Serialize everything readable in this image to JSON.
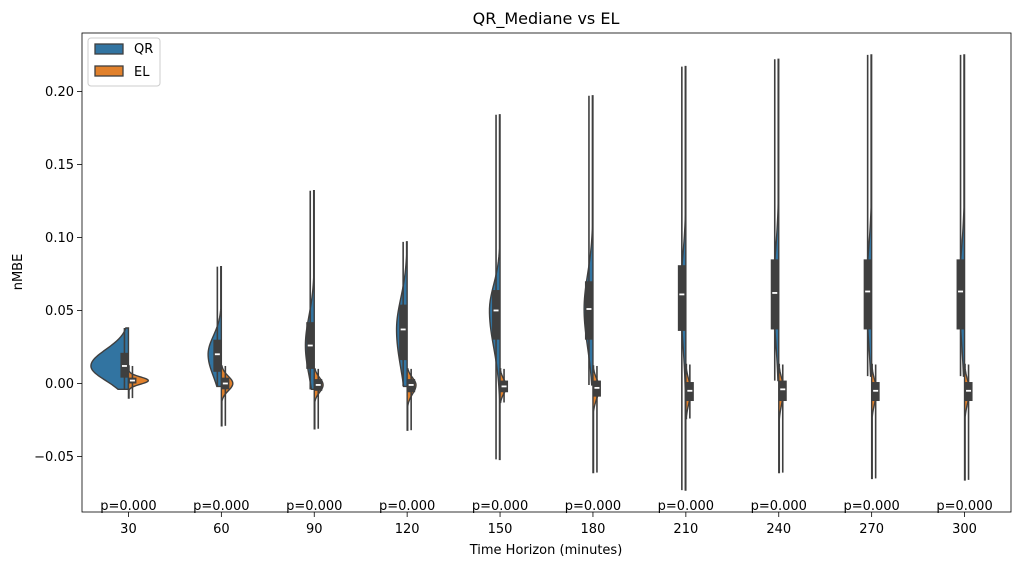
{
  "chart_data": {
    "type": "violin",
    "title": "QR_Mediane vs EL",
    "xlabel": "Time Horizon (minutes)",
    "ylabel": "nMBE",
    "categories": [
      "30",
      "60",
      "90",
      "120",
      "150",
      "180",
      "210",
      "240",
      "270",
      "300"
    ],
    "yticks": [
      -0.05,
      0.0,
      0.05,
      0.1,
      0.15,
      0.2
    ],
    "ytick_labels": [
      "−0.05",
      "0.00",
      "0.05",
      "0.10",
      "0.15",
      "0.20"
    ],
    "ylim": [
      -0.088,
      0.24
    ],
    "legend": {
      "position": "top-left",
      "entries": [
        "QR",
        "EL"
      ]
    },
    "colors": {
      "QR": "#3274a1",
      "EL": "#e1812c",
      "outline": "#3f3f3f",
      "box": "#3f3f3f",
      "median": "#ffffff"
    },
    "p_values": [
      "p=0.000",
      "p=0.000",
      "p=0.000",
      "p=0.000",
      "p=0.000",
      "p=0.000",
      "p=0.000",
      "p=0.000",
      "p=0.000",
      "p=0.000"
    ],
    "series": [
      {
        "name": "QR",
        "side": "left",
        "stats": [
          {
            "min": -0.004,
            "q1": 0.004,
            "median": 0.012,
            "q3": 0.021,
            "max": 0.038,
            "density_width": 0.85
          },
          {
            "min": -0.002,
            "q1": 0.008,
            "median": 0.02,
            "q3": 0.03,
            "max": 0.08,
            "density_width": 0.3
          },
          {
            "min": -0.004,
            "q1": 0.01,
            "median": 0.026,
            "q3": 0.042,
            "max": 0.132,
            "density_width": 0.2
          },
          {
            "min": -0.002,
            "q1": 0.016,
            "median": 0.037,
            "q3": 0.054,
            "max": 0.097,
            "density_width": 0.24
          },
          {
            "min": -0.052,
            "q1": 0.03,
            "median": 0.05,
            "q3": 0.064,
            "max": 0.184,
            "density_width": 0.24
          },
          {
            "min": -0.001,
            "q1": 0.03,
            "median": 0.051,
            "q3": 0.07,
            "max": 0.197,
            "density_width": 0.2
          },
          {
            "min": -0.073,
            "q1": 0.036,
            "median": 0.061,
            "q3": 0.081,
            "max": 0.217,
            "density_width": 0.12
          },
          {
            "min": 0.002,
            "q1": 0.037,
            "median": 0.062,
            "q3": 0.085,
            "max": 0.222,
            "density_width": 0.12
          },
          {
            "min": 0.005,
            "q1": 0.037,
            "median": 0.063,
            "q3": 0.085,
            "max": 0.225,
            "density_width": 0.12
          },
          {
            "min": 0.005,
            "q1": 0.037,
            "median": 0.063,
            "q3": 0.085,
            "max": 0.225,
            "density_width": 0.12
          }
        ]
      },
      {
        "name": "EL",
        "side": "right",
        "stats": [
          {
            "min": -0.01,
            "q1": 0.0,
            "median": 0.002,
            "q3": 0.004,
            "max": 0.012,
            "density_width": 0.45
          },
          {
            "min": -0.029,
            "q1": -0.004,
            "median": 0.0,
            "q3": 0.004,
            "max": 0.012,
            "density_width": 0.26
          },
          {
            "min": -0.031,
            "q1": -0.005,
            "median": -0.001,
            "q3": 0.003,
            "max": 0.01,
            "density_width": 0.2
          },
          {
            "min": -0.032,
            "q1": -0.006,
            "median": -0.001,
            "q3": 0.003,
            "max": 0.01,
            "density_width": 0.2
          },
          {
            "min": -0.013,
            "q1": -0.006,
            "median": -0.002,
            "q3": 0.002,
            "max": 0.01,
            "density_width": 0.14
          },
          {
            "min": -0.061,
            "q1": -0.009,
            "median": -0.003,
            "q3": 0.002,
            "max": 0.012,
            "density_width": 0.14
          },
          {
            "min": -0.024,
            "q1": -0.012,
            "median": -0.005,
            "q3": 0.001,
            "max": 0.013,
            "density_width": 0.11
          },
          {
            "min": -0.061,
            "q1": -0.012,
            "median": -0.004,
            "q3": 0.002,
            "max": 0.013,
            "density_width": 0.11
          },
          {
            "min": -0.065,
            "q1": -0.012,
            "median": -0.005,
            "q3": 0.001,
            "max": 0.013,
            "density_width": 0.11
          },
          {
            "min": -0.066,
            "q1": -0.012,
            "median": -0.005,
            "q3": 0.001,
            "max": 0.013,
            "density_width": 0.11
          }
        ]
      }
    ]
  }
}
